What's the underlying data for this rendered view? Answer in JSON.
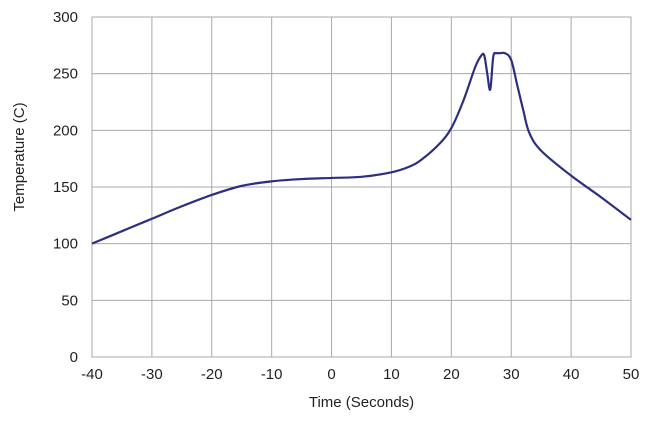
{
  "chart_data": {
    "type": "line",
    "title": "",
    "xlabel": "Time (Seconds)",
    "ylabel": "Temperature (C)",
    "xlim": [
      -40,
      50
    ],
    "ylim": [
      0,
      300
    ],
    "xticks": [
      -40,
      -30,
      -20,
      -10,
      0,
      10,
      20,
      30,
      40,
      50
    ],
    "yticks": [
      0,
      50,
      100,
      150,
      200,
      250,
      300
    ],
    "grid": true,
    "legend": "none",
    "series": [
      {
        "color": "#2e2f7e",
        "x": [
          -40,
          -35,
          -30,
          -25,
          -20,
          -15,
          -10,
          -5,
          0,
          5,
          10,
          13,
          15,
          18,
          20,
          22,
          24,
          25,
          25.5,
          26,
          26.5,
          27,
          27.5,
          28,
          29,
          30,
          31,
          32,
          33,
          35,
          40,
          45,
          50
        ],
        "y": [
          100,
          111,
          122,
          133,
          143,
          151,
          155,
          157,
          158,
          159,
          163,
          168,
          174,
          188,
          202,
          226,
          256,
          266,
          266,
          250,
          236,
          265,
          268,
          268,
          268,
          262,
          240,
          218,
          198,
          182,
          160,
          141,
          121
        ]
      }
    ]
  }
}
